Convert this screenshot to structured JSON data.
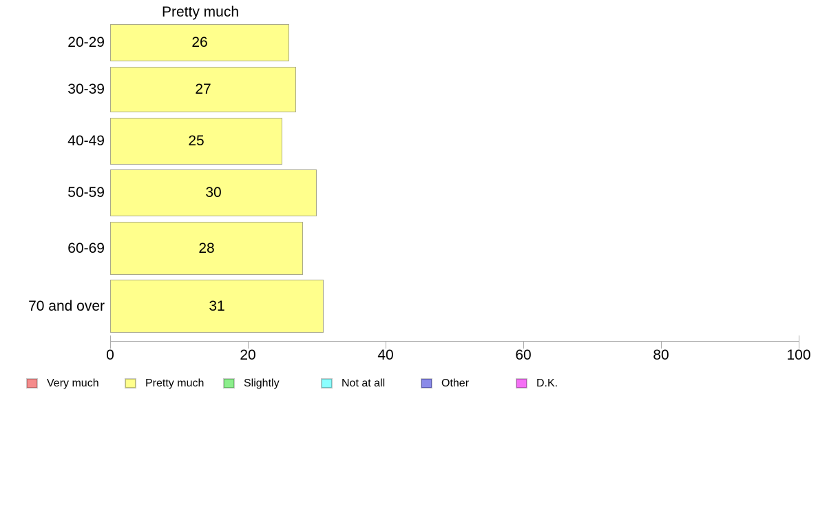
{
  "chart_data": {
    "type": "bar",
    "orientation": "horizontal",
    "title": "Pretty much",
    "categories": [
      "20-29",
      "30-39",
      "40-49",
      "50-59",
      "60-69",
      "70 and over"
    ],
    "values": [
      26,
      27,
      25,
      30,
      28,
      31
    ],
    "xlabel": "",
    "ylabel": "",
    "xlim": [
      0,
      100
    ],
    "x_ticks": [
      0,
      20,
      40,
      60,
      80,
      100
    ],
    "grid": false,
    "bar_value_labels_shown": true,
    "legend_position": "bottom",
    "legend": [
      {
        "label": "Very much",
        "color": "#F58C8C",
        "border": "#C06A6A"
      },
      {
        "label": "Pretty much",
        "color": "#FFFF8C",
        "border": "#BDBD69"
      },
      {
        "label": "Slightly",
        "color": "#8CEE8C",
        "border": "#67B867"
      },
      {
        "label": "Not at all",
        "color": "#8CFFFF",
        "border": "#69BFBF"
      },
      {
        "label": "Other",
        "color": "#8A8AE8",
        "border": "#5C5CB0"
      },
      {
        "label": "D.K.",
        "color": "#F56FF5",
        "border": "#B853B8"
      }
    ],
    "colors": {
      "bar_fill": "#FFFF8C",
      "bar_border": "#A9A98B",
      "axis": "#ABABAB",
      "text": "#000000"
    }
  }
}
